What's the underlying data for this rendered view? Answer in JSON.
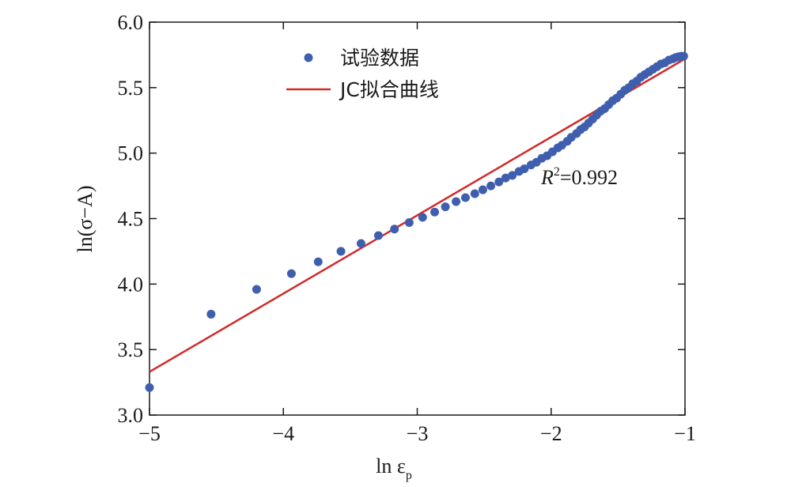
{
  "chart_data": {
    "type": "scatter",
    "xlabel": "ln ε",
    "xlabel_sub": "p",
    "ylabel": "ln(σ−A)",
    "xlim": [
      -5,
      -1
    ],
    "ylim": [
      3.0,
      6.0
    ],
    "x_ticks": [
      -5,
      -4,
      -3,
      -2,
      -1
    ],
    "x_tick_labels": [
      "−5",
      "−4",
      "−3",
      "−2",
      "−1"
    ],
    "y_ticks": [
      3.0,
      3.5,
      4.0,
      4.5,
      5.0,
      5.5,
      6.0
    ],
    "y_tick_labels": [
      "3.0",
      "3.5",
      "4.0",
      "4.5",
      "5.0",
      "5.5",
      "6.0"
    ],
    "grid": false,
    "legend_position": "top-left",
    "series": [
      {
        "name": "试验数据",
        "kind": "scatter",
        "color": "#3f5fae",
        "x": [
          -5.0,
          -4.54,
          -4.2,
          -3.94,
          -3.74,
          -3.57,
          -3.42,
          -3.29,
          -3.17,
          -3.06,
          -2.96,
          -2.87,
          -2.79,
          -2.71,
          -2.64,
          -2.57,
          -2.51,
          -2.45,
          -2.39,
          -2.34,
          -2.29,
          -2.24,
          -2.2,
          -2.15,
          -2.11,
          -2.07,
          -2.03,
          -1.99,
          -1.95,
          -1.92,
          -1.88,
          -1.85,
          -1.81,
          -1.78,
          -1.75,
          -1.72,
          -1.69,
          -1.66,
          -1.63,
          -1.6,
          -1.57,
          -1.54,
          -1.51,
          -1.48,
          -1.45,
          -1.42,
          -1.39,
          -1.36,
          -1.33,
          -1.3,
          -1.27,
          -1.24,
          -1.21,
          -1.18,
          -1.15,
          -1.12,
          -1.09,
          -1.07,
          -1.05,
          -1.03,
          -1.01
        ],
        "y": [
          3.21,
          3.77,
          3.96,
          4.08,
          4.17,
          4.25,
          4.31,
          4.37,
          4.42,
          4.47,
          4.51,
          4.55,
          4.59,
          4.63,
          4.66,
          4.69,
          4.72,
          4.75,
          4.78,
          4.81,
          4.83,
          4.86,
          4.88,
          4.91,
          4.93,
          4.96,
          4.98,
          5.01,
          5.04,
          5.06,
          5.09,
          5.12,
          5.15,
          5.18,
          5.2,
          5.23,
          5.26,
          5.29,
          5.32,
          5.34,
          5.37,
          5.4,
          5.42,
          5.45,
          5.48,
          5.5,
          5.53,
          5.55,
          5.58,
          5.6,
          5.62,
          5.64,
          5.66,
          5.68,
          5.69,
          5.71,
          5.72,
          5.73,
          5.735,
          5.74,
          5.74
        ]
      },
      {
        "name": "JC拟合曲线",
        "kind": "line",
        "color": "#d12a2a",
        "x": [
          -5.0,
          -1.0
        ],
        "y": [
          3.33,
          5.72
        ]
      }
    ],
    "annotation": {
      "text_italic": "R",
      "superscript": "2",
      "text_rest": "=0.992"
    }
  }
}
